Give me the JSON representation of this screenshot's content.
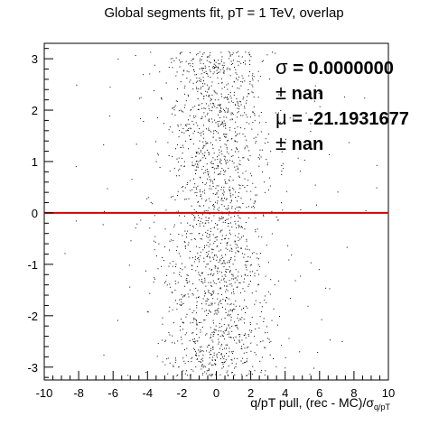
{
  "chart_data": {
    "type": "scatter",
    "title": "Global segments fit, pT = 1 TeV, overlap",
    "xlabel": "q/pT pull, (rec - MC)/σ_q/pT",
    "xlabel_main": "q/pT pull, (rec - MC)/",
    "xlabel_sigma": "σ",
    "xlabel_sub": "q/pT",
    "ylabel": "",
    "xlim": [
      -10,
      10
    ],
    "ylim": [
      -3.25,
      3.3
    ],
    "x_ticks": [
      "-10",
      "-8",
      "-6",
      "-4",
      "-2",
      "0",
      "2",
      "4",
      "6",
      "8",
      "10"
    ],
    "y_ticks": [
      "-3",
      "-2",
      "-1",
      "0",
      "1",
      "2",
      "3"
    ],
    "point_distribution": {
      "description": "dense vertical band of ~2000 points centered near x=0, mostly within x in [-3, 3], sparse outliers out to |x|≈8, spread uniformly over y",
      "x_center": 0.0,
      "x_spread_sigma": 1.5,
      "n_points": 2000
    },
    "reference_line": {
      "y": 0,
      "color": "#d40000"
    },
    "stats": {
      "sigma_symbol": "σ",
      "sigma_value": "= 0.0000000",
      "sigma_err_symbol": "±",
      "sigma_err": "nan",
      "mu_symbol": "μ",
      "mu_value": "= -21.1931677",
      "mu_err_symbol": "±",
      "mu_err": "nan"
    },
    "grid": false,
    "marker_color": "#000000"
  }
}
